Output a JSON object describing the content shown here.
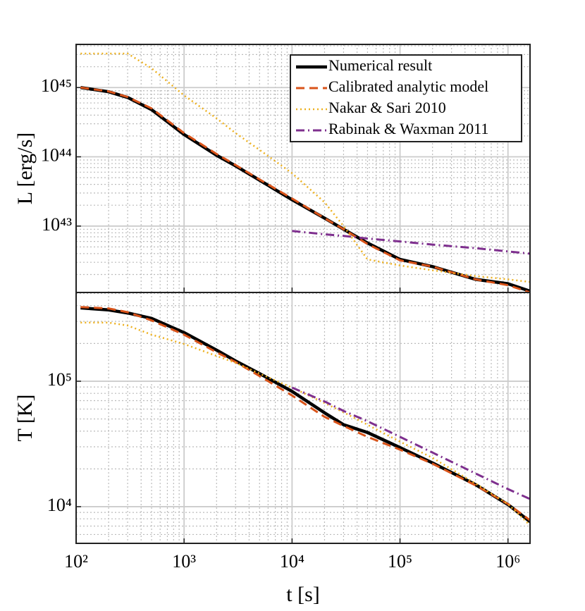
{
  "chart_data": [
    {
      "type": "line",
      "ylabel": "L [erg/s]",
      "xscale": "log",
      "yscale": "log",
      "grid": true,
      "minor_grid": true,
      "legend": "upper right",
      "xlim": [
        100,
        1600000
      ],
      "ylim": [
        1.1e+42,
        4.2e+45
      ],
      "yticks": [
        {
          "value": 1e+43,
          "label": "10⁴³"
        },
        {
          "value": 1e+44,
          "label": "10⁴⁴"
        },
        {
          "value": 1e+45,
          "label": "10⁴⁵"
        }
      ],
      "x": [
        110,
        200,
        300,
        500,
        1000,
        2000,
        3000,
        5000,
        10000,
        20000,
        30000,
        50000,
        100000,
        200000,
        500000,
        1000000,
        1600000
      ],
      "series": [
        {
          "name": "Numerical result",
          "color": "#000000",
          "style": "solid",
          "values": [
            1e+45,
            8.7e+44,
            7.2e+44,
            4.8e+44,
            2.1e+44,
            1.05e+44,
            7.4e+43,
            4.6e+43,
            2.4e+43,
            1.3e+43,
            9e+42,
            5.7e+42,
            3.3e+42,
            2.6e+42,
            1.7e+42,
            1.47e+42,
            1.15e+42
          ]
        },
        {
          "name": "Calibrated analytic model",
          "color": "#d95319",
          "style": "dashed",
          "values": [
            1e+45,
            8.8e+44,
            7.3e+44,
            5e+44,
            2.2e+44,
            1.1e+44,
            7.6e+43,
            4.7e+43,
            2.5e+43,
            1.3e+43,
            9e+42,
            5.5e+42,
            3.2e+42,
            2.6e+42,
            1.7e+42,
            1.4e+42,
            1.1e+42
          ]
        },
        {
          "name": "Nakar & Sari 2010",
          "color": "#edb120",
          "style": "dotted",
          "values": [
            3.1e+45,
            3.1e+45,
            3.1e+45,
            1.9e+45,
            7.7e+44,
            3.6e+44,
            2.2e+44,
            1.26e+44,
            5.8e+43,
            2.2e+43,
            1e+43,
            3.3e+42,
            2.7e+42,
            2.3e+42,
            1.9e+42,
            1.7e+42,
            1.56e+42
          ]
        },
        {
          "name": "Rabinak & Waxman 2011",
          "color": "#7e2f8e",
          "style": "dashdot",
          "values": [
            null,
            null,
            null,
            null,
            null,
            null,
            null,
            null,
            8.5e+42,
            7.6e+42,
            7.2e+42,
            6.6e+42,
            6e+42,
            5.4e+42,
            4.8e+42,
            4.3e+42,
            4e+42
          ]
        }
      ]
    },
    {
      "type": "line",
      "ylabel": "T [K]",
      "xlabel": "t [s]",
      "xscale": "log",
      "yscale": "log",
      "grid": true,
      "minor_grid": true,
      "xlim": [
        100,
        1600000
      ],
      "ylim": [
        5100,
        510000
      ],
      "xticks": [
        {
          "value": 100,
          "label": "10²"
        },
        {
          "value": 1000,
          "label": "10³"
        },
        {
          "value": 10000,
          "label": "10⁴"
        },
        {
          "value": 100000,
          "label": "10⁵"
        },
        {
          "value": 1000000,
          "label": "10⁶"
        }
      ],
      "yticks": [
        {
          "value": 10000,
          "label": "10⁴"
        },
        {
          "value": 100000,
          "label": "10⁵"
        }
      ],
      "x": [
        110,
        200,
        300,
        500,
        1000,
        2000,
        3000,
        5000,
        10000,
        20000,
        30000,
        50000,
        100000,
        200000,
        500000,
        1000000,
        1600000
      ],
      "series": [
        {
          "color": "#000000",
          "style": "solid",
          "values": [
            384000,
            370000,
            350000,
            317000,
            244000,
            177000,
            145000,
            115000,
            83000,
            56000,
            45000,
            39000,
            29600,
            22300,
            15000,
            10400,
            7600
          ]
        },
        {
          "color": "#d95319",
          "style": "dashed",
          "values": [
            390000,
            380000,
            355000,
            305000,
            235000,
            170000,
            142000,
            110000,
            77000,
            52000,
            44000,
            36000,
            28500,
            22000,
            14800,
            10500,
            7800
          ]
        },
        {
          "color": "#edb120",
          "style": "dotted",
          "values": [
            293000,
            293000,
            278000,
            235000,
            198000,
            159000,
            140000,
            115000,
            89000,
            67000,
            56500,
            45000,
            33000,
            24500,
            15300,
            10500,
            7100
          ]
        },
        {
          "color": "#7e2f8e",
          "style": "dashdot",
          "values": [
            null,
            null,
            null,
            null,
            null,
            null,
            null,
            null,
            89000,
            69000,
            58000,
            48000,
            36000,
            27000,
            18400,
            13800,
            11500
          ]
        }
      ]
    }
  ]
}
